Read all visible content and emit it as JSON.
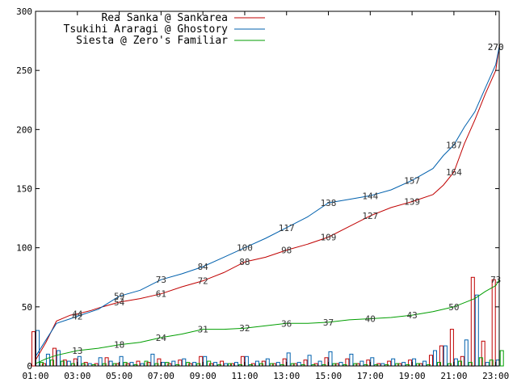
{
  "chart_data": {
    "type": "line",
    "title": "",
    "xlabel": "",
    "ylabel": "",
    "ylim": [
      0,
      300
    ],
    "xlim": [
      "01:00",
      "23:10"
    ],
    "yticks": [
      "0",
      "50",
      "100",
      "150",
      "200",
      "250",
      "300"
    ],
    "xticks": [
      "01:00",
      "03:00",
      "05:00",
      "07:00",
      "09:00",
      "11:00",
      "13:00",
      "15:00",
      "17:00",
      "19:00",
      "21:00",
      "23:00"
    ],
    "grid": false,
    "legend": "top-left",
    "series": [
      {
        "name": "Rea Sanka @ Sankarea",
        "color": "#c00000",
        "x": [
          "01:00",
          "01:30",
          "02:00",
          "02:40",
          "03:00",
          "03:40",
          "04:00",
          "05:00",
          "06:00",
          "07:00",
          "08:00",
          "09:00",
          "10:00",
          "11:00",
          "12:00",
          "13:00",
          "14:00",
          "15:00",
          "16:00",
          "17:00",
          "18:00",
          "19:00",
          "20:00",
          "20:30",
          "21:00",
          "21:30",
          "22:00",
          "22:30",
          "23:00",
          "23:10"
        ],
        "y": [
          5,
          20,
          38,
          43,
          44,
          47,
          49,
          54,
          57,
          61,
          67,
          72,
          79,
          88,
          92,
          98,
          103,
          109,
          118,
          127,
          134,
          139,
          145,
          153,
          164,
          188,
          208,
          230,
          250,
          270
        ],
        "labels": [
          {
            "x": "03:00",
            "y": 44,
            "text": "44"
          },
          {
            "x": "05:00",
            "y": 54,
            "text": "54"
          },
          {
            "x": "07:00",
            "y": 61,
            "text": "61"
          },
          {
            "x": "09:00",
            "y": 72,
            "text": "72"
          },
          {
            "x": "11:00",
            "y": 88,
            "text": "88"
          },
          {
            "x": "13:00",
            "y": 98,
            "text": "98"
          },
          {
            "x": "15:00",
            "y": 109,
            "text": "109"
          },
          {
            "x": "17:00",
            "y": 127,
            "text": "127"
          },
          {
            "x": "19:00",
            "y": 139,
            "text": "139"
          },
          {
            "x": "21:00",
            "y": 164,
            "text": "164"
          },
          {
            "x": "23:00",
            "y": 270,
            "text": "270"
          }
        ]
      },
      {
        "name": "Tsukihi Araragi @ Ghostory",
        "color": "#0060ad",
        "x": [
          "01:00",
          "01:30",
          "02:00",
          "02:40",
          "03:00",
          "03:40",
          "04:00",
          "05:00",
          "06:00",
          "07:00",
          "08:00",
          "09:00",
          "10:00",
          "11:00",
          "12:00",
          "13:00",
          "14:00",
          "15:00",
          "16:00",
          "17:00",
          "18:00",
          "19:00",
          "20:00",
          "20:30",
          "21:00",
          "21:30",
          "22:00",
          "22:30",
          "23:00",
          "23:10"
        ],
        "y": [
          8,
          22,
          36,
          40,
          42,
          46,
          48,
          59,
          64,
          73,
          78,
          84,
          92,
          100,
          108,
          117,
          126,
          138,
          141,
          144,
          149,
          157,
          167,
          178,
          187,
          202,
          215,
          235,
          255,
          270
        ],
        "labels": [
          {
            "x": "03:00",
            "y": 42,
            "text": "42"
          },
          {
            "x": "05:00",
            "y": 59,
            "text": "59"
          },
          {
            "x": "07:00",
            "y": 73,
            "text": "73"
          },
          {
            "x": "09:00",
            "y": 84,
            "text": "84"
          },
          {
            "x": "11:00",
            "y": 100,
            "text": "100"
          },
          {
            "x": "13:00",
            "y": 117,
            "text": "117"
          },
          {
            "x": "15:00",
            "y": 138,
            "text": "138"
          },
          {
            "x": "17:00",
            "y": 144,
            "text": "144"
          },
          {
            "x": "19:00",
            "y": 157,
            "text": "157"
          },
          {
            "x": "21:00",
            "y": 187,
            "text": "187"
          },
          {
            "x": "23:00",
            "y": 270,
            "text": "270"
          }
        ]
      },
      {
        "name": "Siesta @ Zero's Familiar",
        "color": "#009e00",
        "x": [
          "01:00",
          "01:30",
          "02:00",
          "03:00",
          "04:00",
          "05:00",
          "06:00",
          "07:00",
          "08:00",
          "09:00",
          "10:00",
          "11:00",
          "12:00",
          "13:00",
          "14:00",
          "15:00",
          "16:00",
          "17:00",
          "18:00",
          "19:00",
          "20:00",
          "21:00",
          "22:00",
          "22:30",
          "23:00",
          "23:10"
        ],
        "y": [
          2,
          6,
          9,
          13,
          15,
          18,
          20,
          24,
          27,
          31,
          31,
          32,
          34,
          36,
          36,
          37,
          39,
          40,
          41,
          43,
          46,
          50,
          57,
          63,
          68,
          73
        ],
        "labels": [
          {
            "x": "03:00",
            "y": 13,
            "text": "13"
          },
          {
            "x": "05:00",
            "y": 18,
            "text": "18"
          },
          {
            "x": "07:00",
            "y": 24,
            "text": "24"
          },
          {
            "x": "09:00",
            "y": 31,
            "text": "31"
          },
          {
            "x": "11:00",
            "y": 32,
            "text": "32"
          },
          {
            "x": "13:00",
            "y": 36,
            "text": "36"
          },
          {
            "x": "15:00",
            "y": 37,
            "text": "37"
          },
          {
            "x": "17:00",
            "y": 40,
            "text": "40"
          },
          {
            "x": "19:00",
            "y": 43,
            "text": "43"
          },
          {
            "x": "21:00",
            "y": 50,
            "text": "50"
          },
          {
            "x": "23:00",
            "y": 73,
            "text": "73"
          }
        ]
      }
    ],
    "bars": {
      "type": "bar",
      "x": [
        "01:00",
        "01:30",
        "02:00",
        "02:30",
        "03:00",
        "03:30",
        "04:00",
        "04:30",
        "05:00",
        "05:30",
        "06:00",
        "06:30",
        "07:00",
        "07:30",
        "08:00",
        "08:30",
        "09:00",
        "09:30",
        "10:00",
        "10:30",
        "11:00",
        "11:30",
        "12:00",
        "12:30",
        "13:00",
        "13:30",
        "14:00",
        "14:30",
        "15:00",
        "15:30",
        "16:00",
        "16:30",
        "17:00",
        "17:30",
        "18:00",
        "18:30",
        "19:00",
        "19:30",
        "20:00",
        "20:30",
        "21:00",
        "21:30",
        "22:00",
        "22:30",
        "23:00"
      ],
      "series": [
        {
          "name": "Rea Sanka @ Sankarea",
          "values": [
            29,
            2,
            15,
            5,
            6,
            3,
            2,
            7,
            2,
            2,
            4,
            3,
            6,
            2,
            5,
            2,
            8,
            2,
            4,
            2,
            8,
            2,
            4,
            2,
            6,
            2,
            5,
            2,
            7,
            2,
            6,
            2,
            5,
            2,
            4,
            2,
            5,
            2,
            9,
            17,
            31,
            8,
            75,
            21,
            73
          ]
        },
        {
          "name": "Tsukihi Araragi @ Ghostory",
          "values": [
            30,
            10,
            13,
            4,
            8,
            2,
            7,
            4,
            8,
            3,
            2,
            10,
            3,
            4,
            6,
            3,
            8,
            3,
            2,
            3,
            8,
            4,
            6,
            3,
            11,
            3,
            9,
            4,
            12,
            3,
            10,
            4,
            7,
            2,
            6,
            3,
            6,
            4,
            13,
            17,
            6,
            22,
            60,
            3,
            5
          ]
        },
        {
          "name": "Siesta @ Zero's Familiar",
          "values": [
            3,
            5,
            4,
            2,
            2,
            1,
            2,
            2,
            3,
            1,
            4,
            2,
            3,
            1,
            3,
            2,
            4,
            1,
            2,
            1,
            1,
            2,
            2,
            1,
            2,
            1,
            1,
            1,
            2,
            1,
            2,
            1,
            1,
            1,
            2,
            1,
            2,
            1,
            3,
            2,
            4,
            3,
            7,
            5,
            13
          ]
        }
      ]
    }
  }
}
